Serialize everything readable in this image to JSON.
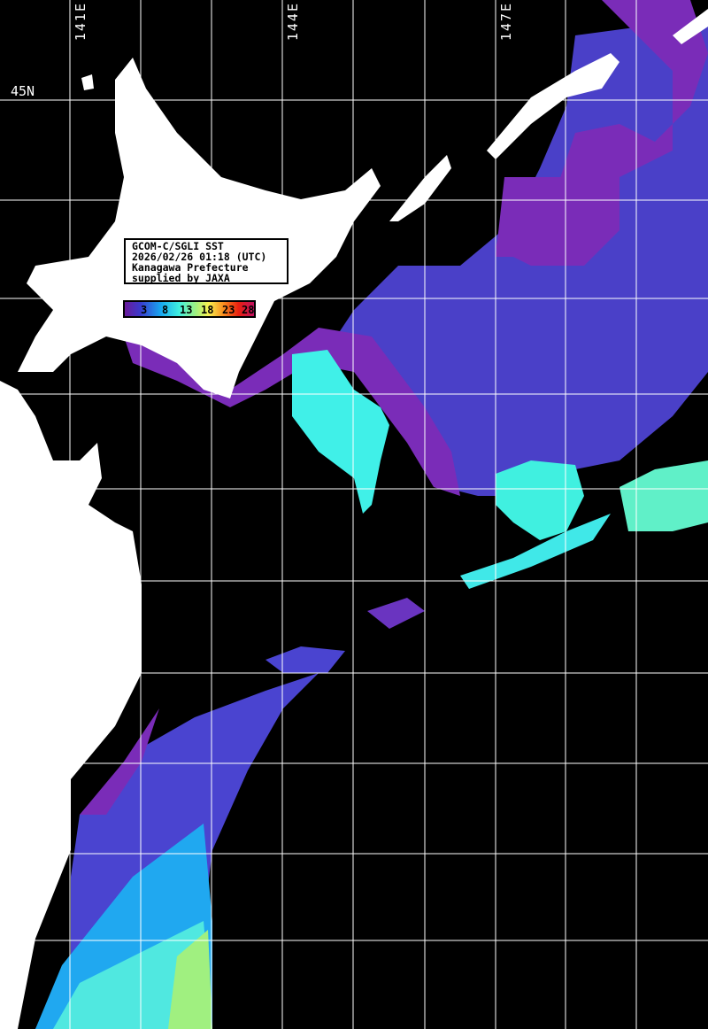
{
  "info": {
    "line1": "GCOM-C/SGLI SST",
    "line2": "2026/02/26 01:18 (UTC)",
    "line3": "Kanagawa Prefecture",
    "line4": "supplied by JAXA"
  },
  "legend": {
    "ticks": [
      "3",
      "8",
      "13",
      "18",
      "23",
      "28"
    ],
    "unit_range": [
      0,
      30
    ],
    "colors": [
      "#6a1a9a",
      "#3a3acc",
      "#18a8f0",
      "#40f0e0",
      "#a0f080",
      "#f8f050",
      "#f89020",
      "#e82010",
      "#c01060"
    ]
  },
  "grid": {
    "longitude_labels": [
      "141E",
      "144E",
      "147E"
    ],
    "latitude_labels": [
      "45N"
    ]
  },
  "colors": {
    "land": "#ffffff",
    "no_data": "#000000",
    "grid": "#ffffff"
  }
}
